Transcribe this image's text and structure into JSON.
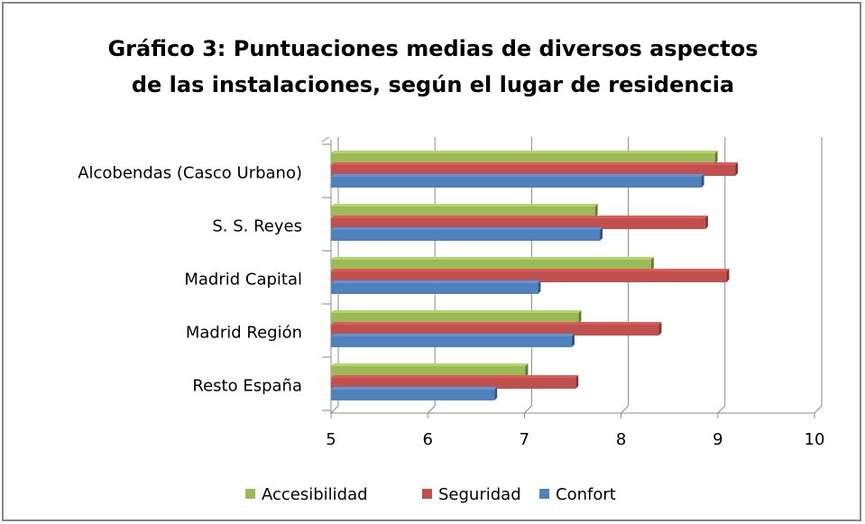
{
  "chart_data": {
    "type": "bar3d_horizontal",
    "title": "Gráfico 3: Puntuaciones medias de diversos aspectos de las instalaciones, según el lugar de residencia",
    "categories": [
      "Alcobendas (Casco Urbano)",
      "S. S. Reyes",
      "Madrid Capital",
      "Madrid Región",
      "Resto España"
    ],
    "series": [
      {
        "name": "Accesibilidad",
        "color": "#9bbb59",
        "values": [
          8.97,
          7.73,
          8.31,
          7.56,
          7.01
        ]
      },
      {
        "name": "Seguridad",
        "color": "#c0504d",
        "values": [
          9.18,
          8.87,
          9.09,
          8.39,
          7.53
        ]
      },
      {
        "name": "Confort",
        "color": "#4f81bd",
        "values": [
          8.83,
          7.78,
          7.14,
          7.49,
          6.69
        ]
      }
    ],
    "xlim": [
      5,
      10
    ],
    "xticks": [
      5,
      6,
      7,
      8,
      9,
      10
    ],
    "grid": true,
    "legend": "bottom"
  }
}
